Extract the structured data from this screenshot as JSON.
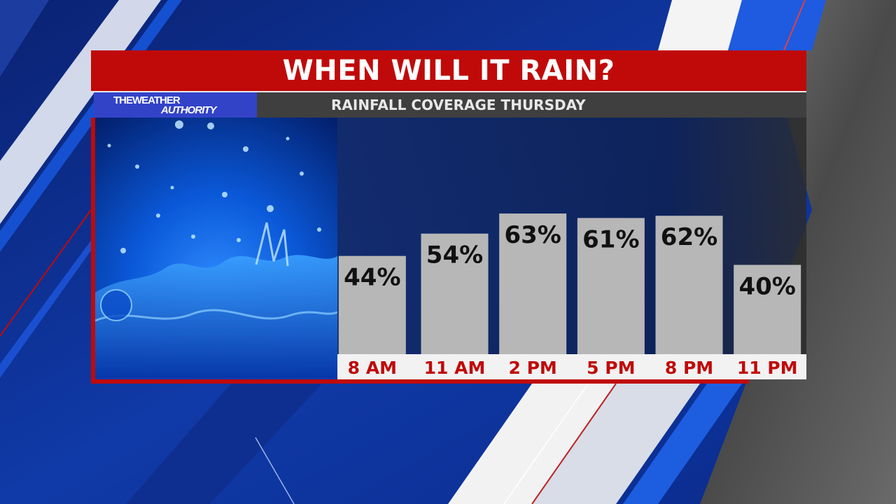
{
  "title": "WHEN WILL IT RAIN?",
  "subtitle": "RAINFALL COVERAGE THURSDAY",
  "logo": {
    "line1": "THEWEATHER",
    "line2": "AUTHORITY"
  },
  "colors": {
    "brand_red": "#c00a0a",
    "bar_fill": "#b7b7b7",
    "label_red": "#c00a0a",
    "subtitle_bar": "#3f3f3f",
    "logo_blue": "#3343c8"
  },
  "chart_data": {
    "type": "bar",
    "title": "RAINFALL COVERAGE THURSDAY",
    "categories": [
      "8 AM",
      "11 AM",
      "2 PM",
      "5 PM",
      "8 PM",
      "11 PM"
    ],
    "values": [
      44,
      54,
      63,
      61,
      62,
      40
    ],
    "data_labels": [
      "44%",
      "54%",
      "63%",
      "61%",
      "62%",
      "40%"
    ],
    "unit": "%",
    "ylim": [
      0,
      100
    ],
    "grid": false,
    "legend": "none"
  }
}
